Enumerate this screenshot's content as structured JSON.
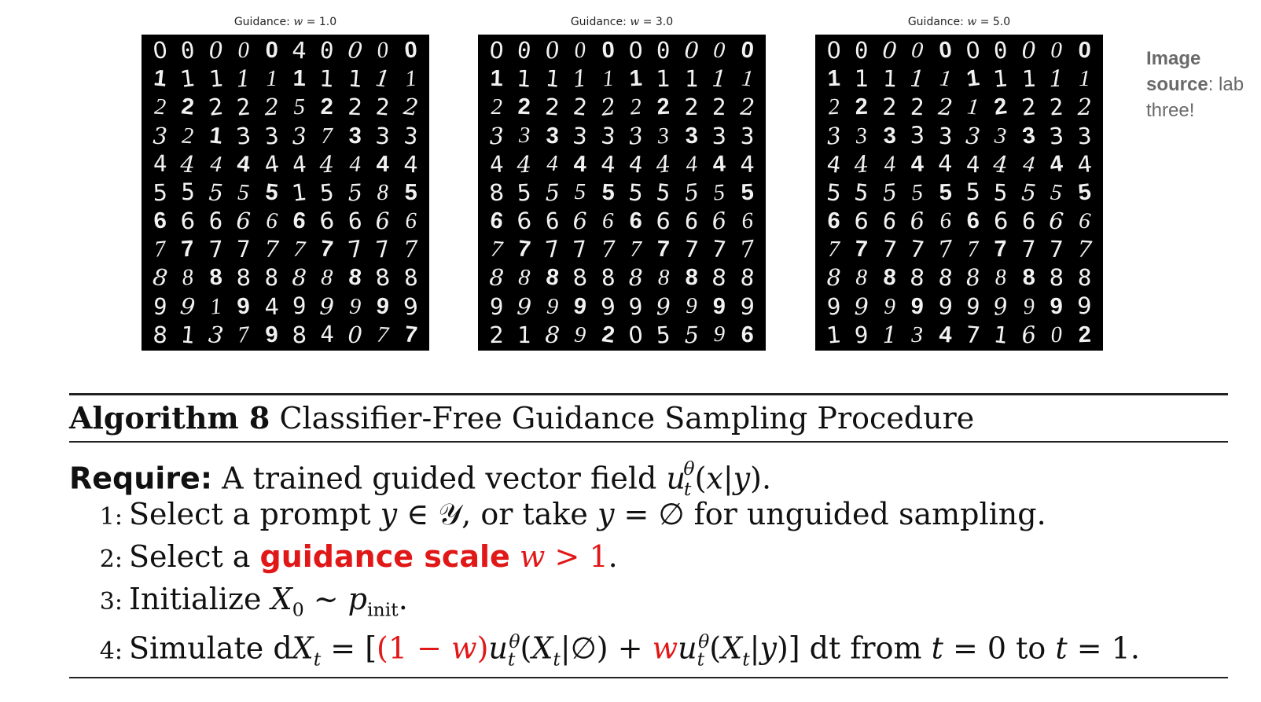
{
  "panels": [
    {
      "title_prefix": "Guidance: ",
      "title_var": "w",
      "title_value": " = 1.0",
      "rows": [
        "0000040000",
        "1111111111",
        "2222252222",
        "3213337333",
        "4444444444",
        "5555515585",
        "6666666666",
        "7777777777",
        "8888888888",
        "9919499999",
        "8137984077"
      ]
    },
    {
      "title_prefix": "Guidance: ",
      "title_var": "w",
      "title_value": " = 3.0",
      "rows": [
        "0000000000",
        "1111111111",
        "2222222222",
        "3333333333",
        "4444444444",
        "8555555555",
        "6666666666",
        "7777777777",
        "8888888888",
        "9999999999",
        "2189205596"
      ]
    },
    {
      "title_prefix": "Guidance: ",
      "title_var": "w",
      "title_value": " = 5.0",
      "rows": [
        "0000000000",
        "1111111111",
        "2222212222",
        "3333333333",
        "4444444444",
        "5555555555",
        "6666666666",
        "7777777777",
        "8888888888",
        "9999999999",
        "1913471602"
      ]
    }
  ],
  "side_note": {
    "label": "Image",
    "label2": "source",
    "rest": ": lab",
    "line3": "three!"
  },
  "algorithm": {
    "heading_bold": "Algorithm 8",
    "heading_text": " Classifier-Free Guidance Sampling Procedure",
    "require_label": "Require:",
    "require_text": " A trained guided vector field ",
    "lines": [
      {
        "num": "1:"
      },
      {
        "num": "2:"
      },
      {
        "num": "3:"
      },
      {
        "num": "4:"
      }
    ],
    "line1_a": "Select a prompt ",
    "line1_b": ", or take ",
    "line1_c": " for unguided sampling.",
    "line2_a": "Select a ",
    "line2_red": "guidance scale",
    "line2_b": ".",
    "line3_a": "Initialize ",
    "line4_a": "Simulate d",
    "line4_b": " dt from ",
    "line4_c": " to ",
    "line4_d": "."
  }
}
